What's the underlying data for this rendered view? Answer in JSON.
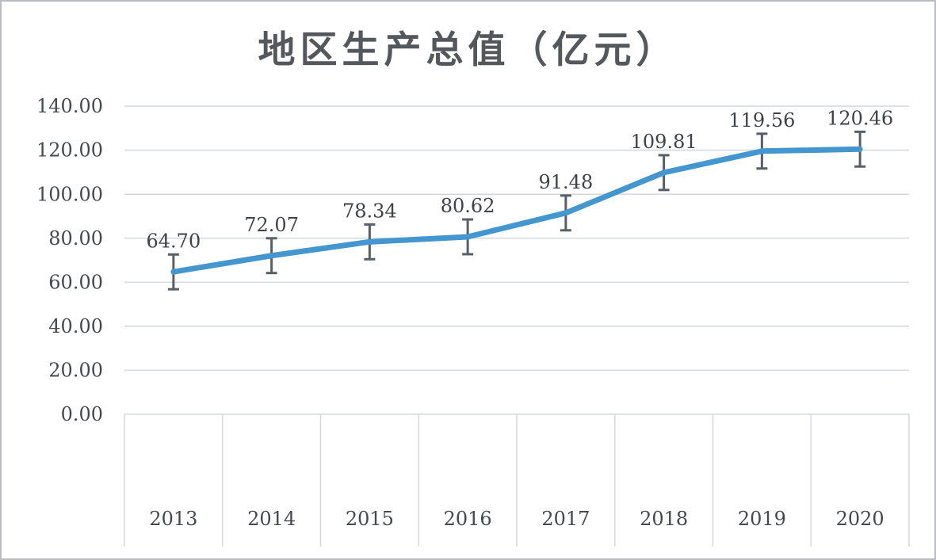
{
  "chart_data": {
    "type": "line",
    "title": "地区生产总值（亿元）",
    "categories": [
      "2013",
      "2014",
      "2015",
      "2016",
      "2017",
      "2018",
      "2019",
      "2020"
    ],
    "values": [
      64.7,
      72.07,
      78.34,
      80.62,
      91.48,
      109.81,
      119.56,
      120.46
    ],
    "point_labels": [
      "64.70",
      "72.07",
      "78.34",
      "80.62",
      "91.48",
      "109.81",
      "119.56",
      "120.46"
    ],
    "y_ticks": [
      "0.00",
      "20.00",
      "40.00",
      "60.00",
      "80.00",
      "100.00",
      "120.00",
      "140.00"
    ],
    "y_tick_values": [
      0,
      20,
      40,
      60,
      80,
      100,
      120,
      140
    ],
    "ylim": [
      0,
      140
    ],
    "error_bar_value": 7.9,
    "grid": "horizontal",
    "legend": "none",
    "xlabel": "",
    "ylabel": "",
    "colors": {
      "line": "#4496cf",
      "error_bar": "#595f66",
      "grid": "#d6dade",
      "tick_text": "#45494e",
      "label_text": "#3f4347",
      "title_text": "#54585d",
      "border": "#b9bdc1",
      "background": "#ffffff"
    }
  }
}
